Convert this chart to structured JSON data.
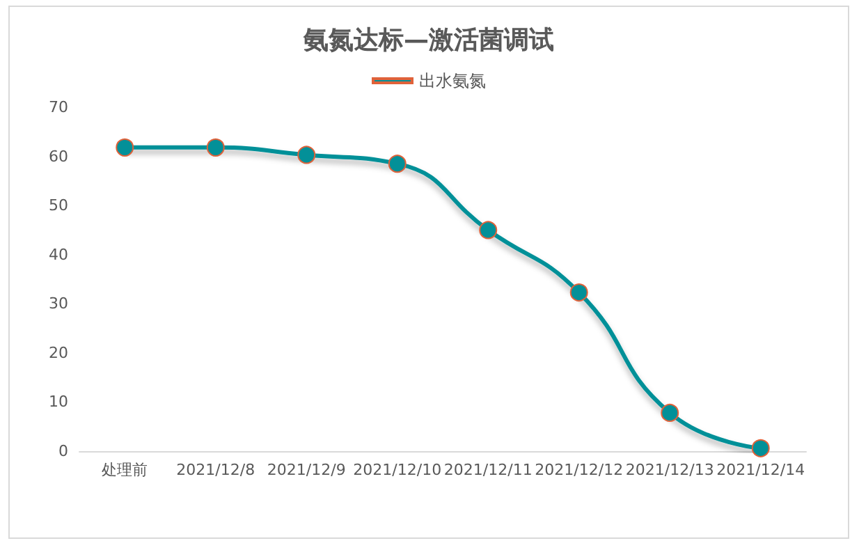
{
  "chart_data": {
    "type": "line",
    "title": "氨氮达标—激活菌调试",
    "categories": [
      "处理前",
      "2021/12/8",
      "2021/12/9",
      "2021/12/10",
      "2021/12/11",
      "2021/12/12",
      "2021/12/13",
      "2021/12/14"
    ],
    "series": [
      {
        "name": "出水氨氮",
        "color": "#039098",
        "values": [
          61.8,
          61.8,
          60.3,
          58.5,
          45,
          32.3,
          7.8,
          0.6
        ]
      }
    ],
    "ylim": [
      0,
      70
    ],
    "yticks": [
      0,
      10,
      20,
      30,
      40,
      50,
      60,
      70
    ],
    "grid": false,
    "legend": "top",
    "marker": "circle",
    "line_style": "solid"
  }
}
